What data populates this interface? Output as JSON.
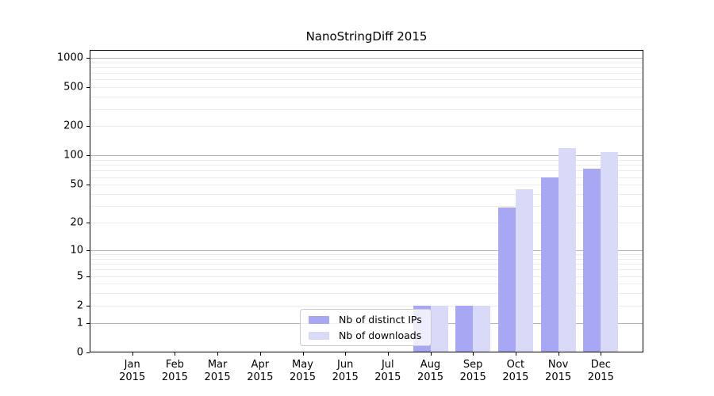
{
  "chart_data": {
    "type": "bar",
    "title": "NanoStringDiff 2015",
    "categories": [
      "Jan",
      "Feb",
      "Mar",
      "Apr",
      "May",
      "Jun",
      "Jul",
      "Aug",
      "Sep",
      "Oct",
      "Nov",
      "Dec"
    ],
    "category_year": "2015",
    "series": [
      {
        "name": "Nb of distinct IPs",
        "color": "#a7a7f4",
        "values": [
          0,
          0,
          0,
          0,
          0,
          0,
          0,
          2,
          2,
          29,
          60,
          73
        ]
      },
      {
        "name": "Nb of downloads",
        "color": "#d9d9f8",
        "values": [
          0,
          0,
          0,
          0,
          0,
          0,
          0,
          2,
          2,
          45,
          119,
          108
        ]
      }
    ],
    "xlabel": "",
    "ylabel": "",
    "yscale": "log1p",
    "ylim": [
      0,
      1200
    ],
    "yticks": [
      0,
      1,
      2,
      5,
      10,
      20,
      50,
      100,
      200,
      500,
      1000
    ],
    "grid": {
      "major_gridlines_at": [
        1,
        10,
        100,
        1000
      ],
      "minor_gridlines": true
    },
    "legend_position": "lower center"
  },
  "colors": {
    "background": "#ffffff",
    "axis": "#000000",
    "major_grid": "#b4b4b4",
    "minor_grid": "#ececec",
    "bar_ips": "#a7a7f4",
    "bar_downloads": "#d9d9f8"
  }
}
